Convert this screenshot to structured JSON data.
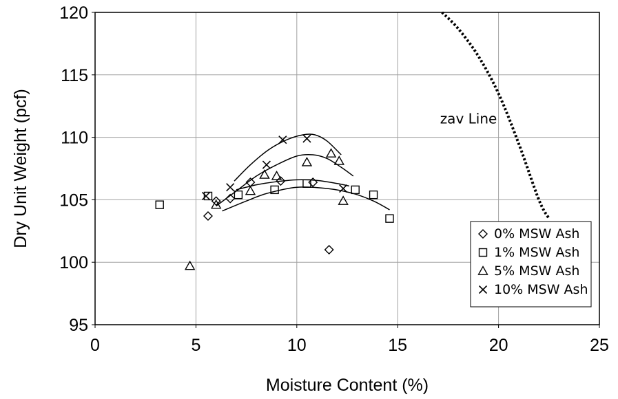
{
  "chart_data": {
    "type": "scatter",
    "xlabel": "Moisture Content (%)",
    "ylabel": "Dry Unit Weight (pcf)",
    "xlim": [
      0,
      25
    ],
    "ylim": [
      95,
      120
    ],
    "xticks": [
      0,
      5,
      10,
      15,
      20,
      25
    ],
    "yticks": [
      95,
      100,
      105,
      110,
      115,
      120
    ],
    "grid": true,
    "legend_position": "bottom-right",
    "series": [
      {
        "name": "0% MSW Ash",
        "marker": "diamond",
        "points": [
          [
            5.6,
            103.7
          ],
          [
            6.0,
            104.9
          ],
          [
            6.7,
            105.1
          ],
          [
            7.7,
            106.4
          ],
          [
            9.2,
            106.5
          ],
          [
            10.8,
            106.4
          ],
          [
            11.6,
            101.0
          ]
        ],
        "trend": [
          [
            7.0,
            105.8
          ],
          [
            8.0,
            106.2
          ],
          [
            9.0,
            106.45
          ],
          [
            10.0,
            106.6
          ],
          [
            11.0,
            106.55
          ],
          [
            12.0,
            106.3
          ],
          [
            12.6,
            106.1
          ]
        ]
      },
      {
        "name": "1% MSW Ash",
        "marker": "square",
        "points": [
          [
            3.2,
            104.6
          ],
          [
            5.6,
            105.3
          ],
          [
            7.1,
            105.4
          ],
          [
            8.9,
            105.8
          ],
          [
            10.5,
            106.3
          ],
          [
            12.9,
            105.8
          ],
          [
            13.8,
            105.4
          ],
          [
            14.6,
            103.5
          ]
        ],
        "trend": [
          [
            6.3,
            104.1
          ],
          [
            7.5,
            104.9
          ],
          [
            8.5,
            105.5
          ],
          [
            10.0,
            106.0
          ],
          [
            11.5,
            105.9
          ],
          [
            12.8,
            105.5
          ],
          [
            13.8,
            104.9
          ],
          [
            14.6,
            104.2
          ]
        ]
      },
      {
        "name": "5% MSW Ash",
        "marker": "triangle",
        "points": [
          [
            4.7,
            99.7
          ],
          [
            6.0,
            104.6
          ],
          [
            7.7,
            105.7
          ],
          [
            8.4,
            107.0
          ],
          [
            9.0,
            106.9
          ],
          [
            10.5,
            108.0
          ],
          [
            11.7,
            108.7
          ],
          [
            12.1,
            108.1
          ],
          [
            12.3,
            104.9
          ]
        ],
        "trend": [
          [
            6.0,
            104.5
          ],
          [
            7.0,
            105.7
          ],
          [
            8.0,
            106.9
          ],
          [
            9.0,
            107.8
          ],
          [
            10.0,
            108.5
          ],
          [
            10.8,
            108.6
          ],
          [
            11.5,
            108.3
          ],
          [
            12.2,
            107.6
          ],
          [
            12.8,
            106.9
          ]
        ]
      },
      {
        "name": "10% MSW Ash",
        "marker": "x",
        "points": [
          [
            5.5,
            105.3
          ],
          [
            6.7,
            106.0
          ],
          [
            8.5,
            107.8
          ],
          [
            9.3,
            109.8
          ],
          [
            10.5,
            109.9
          ],
          [
            12.3,
            105.9
          ]
        ],
        "trend": [
          [
            6.9,
            106.5
          ],
          [
            7.7,
            107.8
          ],
          [
            8.6,
            109.0
          ],
          [
            9.5,
            109.8
          ],
          [
            10.3,
            110.2
          ],
          [
            10.9,
            110.2
          ],
          [
            11.5,
            109.7
          ],
          [
            12.2,
            108.6
          ]
        ]
      }
    ],
    "zav_line": {
      "label": "zav Line",
      "points": [
        [
          17.2,
          120
        ],
        [
          18.0,
          118.7
        ],
        [
          19.0,
          116.5
        ],
        [
          20.0,
          113.5
        ],
        [
          21.0,
          109.5
        ],
        [
          22.0,
          105.0
        ],
        [
          22.5,
          103.5
        ]
      ]
    }
  }
}
